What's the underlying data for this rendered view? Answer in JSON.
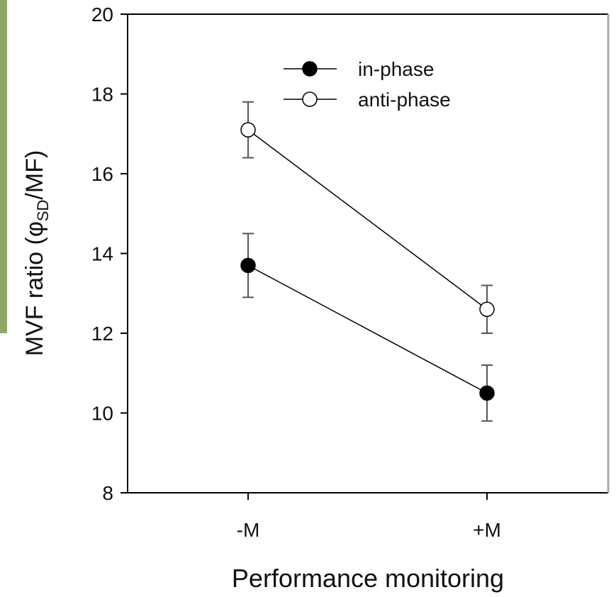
{
  "chart_data": {
    "type": "line",
    "y_label": {
      "text": "MVF ratio (φ",
      "subscript": "SD",
      "after": "/MF)"
    },
    "x_label": "Performance monitoring",
    "categories": [
      "-M",
      "+M"
    ],
    "series": [
      {
        "name": "in-phase",
        "color": "#000000",
        "marker_fill": "#000000",
        "values": [
          13.7,
          10.5
        ],
        "errors": [
          0.8,
          0.7
        ]
      },
      {
        "name": "anti-phase",
        "color": "#000000",
        "marker_fill": "#ffffff",
        "values": [
          17.1,
          12.6
        ],
        "errors": [
          0.7,
          0.6
        ]
      }
    ],
    "ylim": [
      8,
      20
    ],
    "yticks": [
      8,
      10,
      12,
      14,
      16,
      18,
      20
    ]
  }
}
